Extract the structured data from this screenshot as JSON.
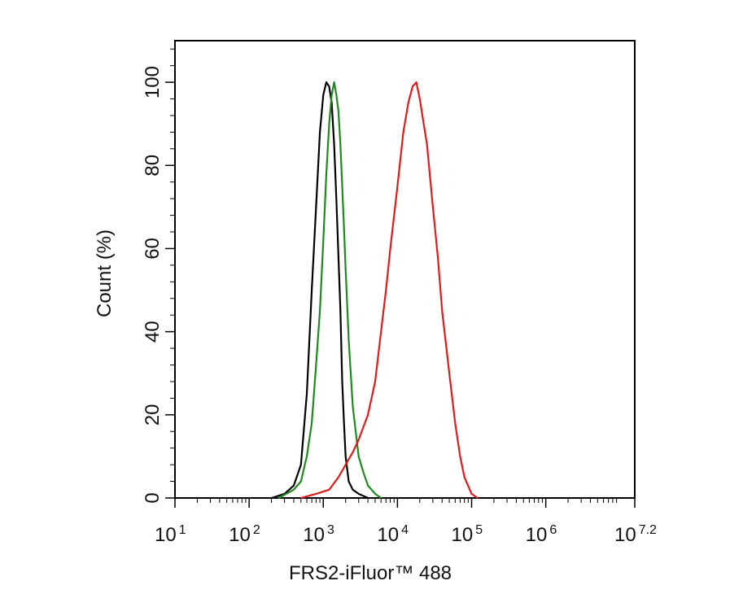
{
  "chart_data": {
    "type": "line",
    "title": "",
    "xlabel": "FRS2-iFluor™ 488",
    "ylabel": "Count  (%)",
    "xscale": "log",
    "xlim": [
      10,
      15848932
    ],
    "ylim": [
      0,
      110
    ],
    "grid": false,
    "legend": "none",
    "x_ticks": [
      {
        "base": "10",
        "exp": "1"
      },
      {
        "base": "10",
        "exp": "2"
      },
      {
        "base": "10",
        "exp": "3"
      },
      {
        "base": "10",
        "exp": "4"
      },
      {
        "base": "10",
        "exp": "5"
      },
      {
        "base": "10",
        "exp": "6"
      },
      {
        "base": "10",
        "exp": "7.2"
      }
    ],
    "y_ticks": [
      "0",
      "20",
      "40",
      "60",
      "80",
      "100"
    ],
    "series": [
      {
        "color": "#000000",
        "x": [
          200,
          300,
          400,
          500,
          600,
          700,
          800,
          900,
          1000,
          1100,
          1200,
          1300,
          1400,
          1500,
          1600,
          1700,
          1800,
          1900,
          2000,
          2200,
          2500,
          3000,
          4000
        ],
        "y": [
          0,
          1,
          3,
          8,
          25,
          50,
          70,
          88,
          97,
          100,
          99,
          95,
          85,
          72,
          58,
          45,
          28,
          18,
          10,
          4,
          2,
          1,
          0
        ]
      },
      {
        "color": "#1e8a1e",
        "x": [
          250,
          400,
          500,
          600,
          700,
          800,
          900,
          1000,
          1100,
          1200,
          1300,
          1400,
          1500,
          1600,
          1700,
          1800,
          1900,
          2000,
          2200,
          2500,
          3000,
          3500,
          4000,
          5000,
          6000
        ],
        "y": [
          0,
          2,
          4,
          10,
          18,
          32,
          45,
          62,
          78,
          90,
          97,
          100,
          97,
          93,
          85,
          75,
          65,
          55,
          38,
          22,
          10,
          6,
          3,
          1,
          0
        ]
      },
      {
        "color": "#e01b1b",
        "x": [
          500,
          800,
          1200,
          1600,
          2000,
          2500,
          3000,
          4000,
          5000,
          6000,
          7000,
          8000,
          10000,
          12000,
          14000,
          16000,
          18000,
          20000,
          25000,
          30000,
          35000,
          40000,
          50000,
          60000,
          70000,
          80000,
          100000,
          120000
        ],
        "y": [
          0,
          1,
          2,
          5,
          8,
          11,
          14,
          20,
          28,
          40,
          50,
          60,
          75,
          88,
          95,
          99,
          100,
          96,
          85,
          70,
          58,
          45,
          30,
          18,
          10,
          5,
          1,
          0
        ]
      }
    ]
  }
}
